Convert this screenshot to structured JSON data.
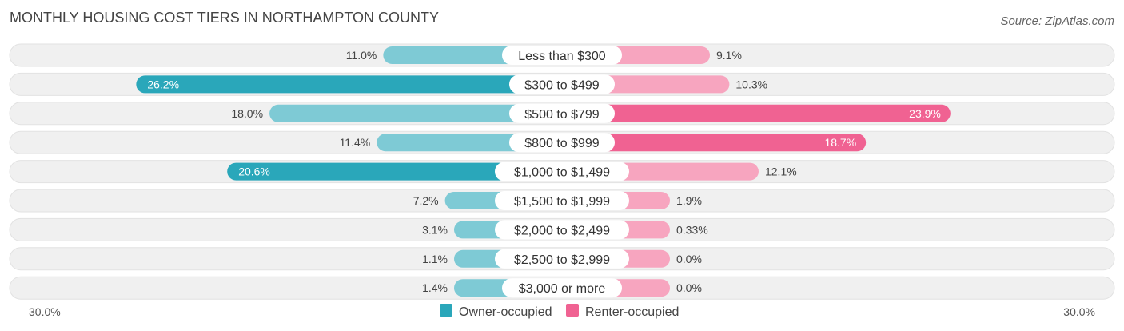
{
  "chart_data": {
    "type": "bar",
    "title": "MONTHLY HOUSING COST TIERS IN NORTHAMPTON COUNTY",
    "source": "Source: ZipAtlas.com",
    "categories": [
      "Less than $300",
      "$300 to $499",
      "$500 to $799",
      "$800 to $999",
      "$1,000 to $1,499",
      "$1,500 to $1,999",
      "$2,000 to $2,499",
      "$2,500 to $2,999",
      "$3,000 or more"
    ],
    "series": [
      {
        "name": "Owner-occupied",
        "color": "#2aa7ba",
        "light_color": "#7ecad5",
        "values": [
          11.0,
          26.2,
          18.0,
          11.4,
          20.6,
          7.2,
          3.1,
          1.1,
          1.4
        ],
        "labels": [
          "11.0%",
          "26.2%",
          "18.0%",
          "11.4%",
          "20.6%",
          "7.2%",
          "3.1%",
          "1.1%",
          "1.4%"
        ]
      },
      {
        "name": "Renter-occupied",
        "color": "#f06292",
        "light_color": "#f7a5bf",
        "values": [
          9.1,
          10.3,
          23.9,
          18.7,
          12.1,
          1.9,
          0.33,
          0.0,
          0.0
        ],
        "labels": [
          "9.1%",
          "10.3%",
          "23.9%",
          "18.7%",
          "12.1%",
          "1.9%",
          "0.33%",
          "0.0%",
          "0.0%"
        ]
      }
    ],
    "axis": {
      "max": 30.0,
      "left_label": "30.0%",
      "right_label": "30.0%"
    },
    "legend": {
      "position": "bottom-center"
    }
  }
}
